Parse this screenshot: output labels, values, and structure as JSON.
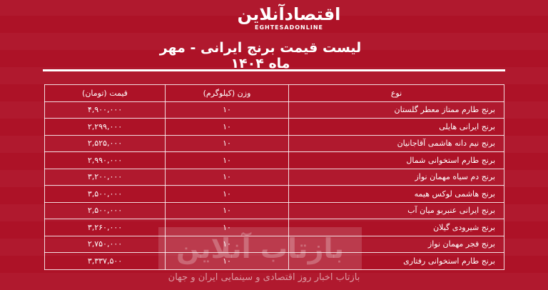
{
  "logo": {
    "fa": "اقتصادآنلاین",
    "en": "EGHTESADONLINE"
  },
  "title": "لیست قیمت برنج ایرانی - مهر ماه ۱۴۰۴",
  "table": {
    "headers": {
      "name": "نوع",
      "weight": "وزن (کیلوگرم)",
      "price": "قیمت (تومان)"
    },
    "rows": [
      {
        "name": "برنج طارم ممتاز معطر گلستان",
        "weight": "۱۰",
        "price": "۴,۹۰۰,۰۰۰"
      },
      {
        "name": "برنج ایرانی هایلی",
        "weight": "۱۰",
        "price": "۲,۲۹۹,۰۰۰"
      },
      {
        "name": "برنج نیم دانه هاشمی آقاجانیان",
        "weight": "۱۰",
        "price": "۲,۵۲۵,۰۰۰"
      },
      {
        "name": "برنج طارم استخوانی شمال",
        "weight": "۱۰",
        "price": "۲,۹۹۰,۰۰۰"
      },
      {
        "name": "برنج دم سیاه مهمان نواز",
        "weight": "۱۰",
        "price": "۳,۲۰۰,۰۰۰"
      },
      {
        "name": "برنج هاشمی لوکس هیمه",
        "weight": "۱۰",
        "price": "۳,۵۰۰,۰۰۰"
      },
      {
        "name": "برنج ایرانی عنبربو میان آب",
        "weight": "۱۰",
        "price": "۲,۵۰۰,۰۰۰"
      },
      {
        "name": "برنج شیرودی گیلان",
        "weight": "۱۰",
        "price": "۳,۲۶۰,۰۰۰"
      },
      {
        "name": "برنج فجر مهمان نواز",
        "weight": "۱۰",
        "price": "۲,۷۵۰,۰۰۰"
      },
      {
        "name": "برنج طارم استخوانی رفتاری",
        "weight": "۱۰",
        "price": "۳,۳۳۷,۵۰۰"
      }
    ]
  },
  "watermark": {
    "name": "بازتاب آنلاین",
    "tagline": "بازتاب اخبار روز اقتصادی و سینمایی ایران و جهان"
  }
}
